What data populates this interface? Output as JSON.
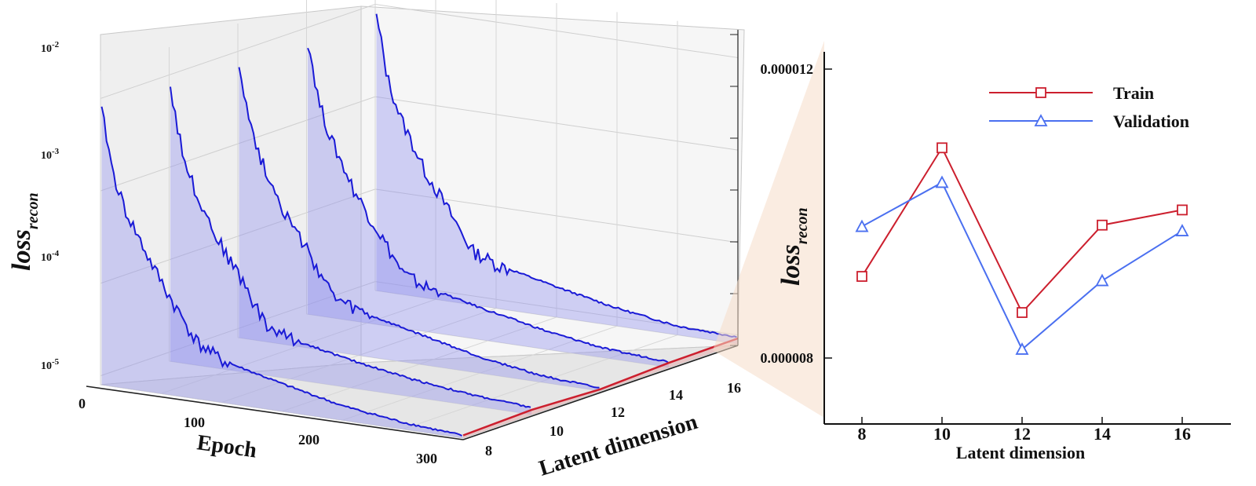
{
  "colors": {
    "train": "#cc1f2e",
    "validation": "#4a6ff0",
    "curve": "#1a1ad6",
    "fill": "#8f8ff0",
    "zoom": "#f5dcc8"
  },
  "chart_data": [
    {
      "type": "line",
      "subtype": "3d-waterfall",
      "zlabel_main": "loss",
      "zlabel_sub": "recon",
      "xlabel": "Epoch",
      "ylabel": "Latent dimension",
      "epoch_ticks": [
        "0",
        "100",
        "200",
        "300"
      ],
      "epoch_tick_values": [
        0,
        100,
        200,
        300
      ],
      "latent_ticks": [
        "8",
        "10",
        "12",
        "14",
        "16"
      ],
      "latent_tick_values": [
        8,
        10,
        12,
        14,
        16
      ],
      "z_ticks": [
        {
          "base": "10",
          "exp": "-2"
        },
        {
          "base": "10",
          "exp": "-3"
        },
        {
          "base": "10",
          "exp": "-4"
        },
        {
          "base": "10",
          "exp": "-5"
        }
      ],
      "z_scale": "log",
      "xlim": [
        0,
        300
      ],
      "ylim": [
        8,
        16
      ],
      "zlim": [
        8e-06,
        0.02
      ],
      "series": [
        {
          "latent_dimension": 8,
          "x": [
            0,
            5,
            10,
            20,
            40,
            60,
            80,
            100,
            150,
            200,
            250,
            300
          ],
          "y": [
            0.0085,
            0.004,
            0.0017,
            0.0007,
            0.00022,
            8e-05,
            3.3e-05,
            2.3e-05,
            1.6e-05,
            1.15e-05,
            9.5e-06,
            8.5e-06
          ]
        },
        {
          "latent_dimension": 10,
          "x": [
            0,
            5,
            10,
            20,
            40,
            60,
            80,
            100,
            150,
            200,
            250,
            300
          ],
          "y": [
            0.0085,
            0.004,
            0.0017,
            0.0007,
            0.0002,
            8e-05,
            2.8e-05,
            2.2e-05,
            1.6e-05,
            1.25e-05,
            1.05e-05,
            9.5e-06
          ]
        },
        {
          "latent_dimension": 12,
          "x": [
            0,
            5,
            10,
            20,
            40,
            60,
            80,
            100,
            150,
            200,
            250,
            300
          ],
          "y": [
            0.0085,
            0.004,
            0.0017,
            0.0007,
            0.0002,
            8e-05,
            3e-05,
            2.4e-05,
            1.7e-05,
            1.2e-05,
            9.5e-06,
            8.5e-06
          ]
        },
        {
          "latent_dimension": 14,
          "x": [
            0,
            5,
            10,
            20,
            40,
            60,
            80,
            100,
            150,
            200,
            250,
            300
          ],
          "y": [
            0.0085,
            0.004,
            0.0017,
            0.0007,
            0.0002,
            8e-05,
            3.1e-05,
            2.4e-05,
            1.7e-05,
            1.25e-05,
            1e-05,
            9.2e-06
          ]
        },
        {
          "latent_dimension": 16,
          "x": [
            0,
            5,
            10,
            20,
            40,
            60,
            80,
            100,
            150,
            200,
            250,
            300
          ],
          "y": [
            0.0085,
            0.004,
            0.0017,
            0.0007,
            0.0002,
            8e-05,
            3.1e-05,
            2.4e-05,
            1.7e-05,
            1.25e-05,
            1e-05,
            9.5e-06
          ]
        }
      ],
      "final_losses": {
        "x": [
          8,
          10,
          12,
          14,
          16
        ],
        "y": [
          8.57e-06,
          9.02e-06,
          8.36e-06,
          9.01e-06,
          9.17e-06
        ]
      }
    },
    {
      "type": "line",
      "xlabel": "Latent dimension",
      "ylabel_main": "loss",
      "ylabel_sub": "recon",
      "ylim": [
        8e-06,
        1.2e-05
      ],
      "y_ticks": [
        "0.000012",
        "0.000008"
      ],
      "y_tick_values": [
        1.2e-05,
        8e-06
      ],
      "categories": [
        "8",
        "10",
        "12",
        "14",
        "16"
      ],
      "x": [
        8,
        10,
        12,
        14,
        16
      ],
      "legend_position": "top-right",
      "series": [
        {
          "name": "Train",
          "marker": "square",
          "values": [
            9.13e-06,
            1.091e-05,
            8.63e-06,
            9.84e-06,
            1.005e-05
          ]
        },
        {
          "name": "Validation",
          "marker": "triangle",
          "values": [
            9.82e-06,
            1.043e-05,
            8.12e-06,
            9.07e-06,
            9.76e-06
          ]
        }
      ]
    }
  ]
}
